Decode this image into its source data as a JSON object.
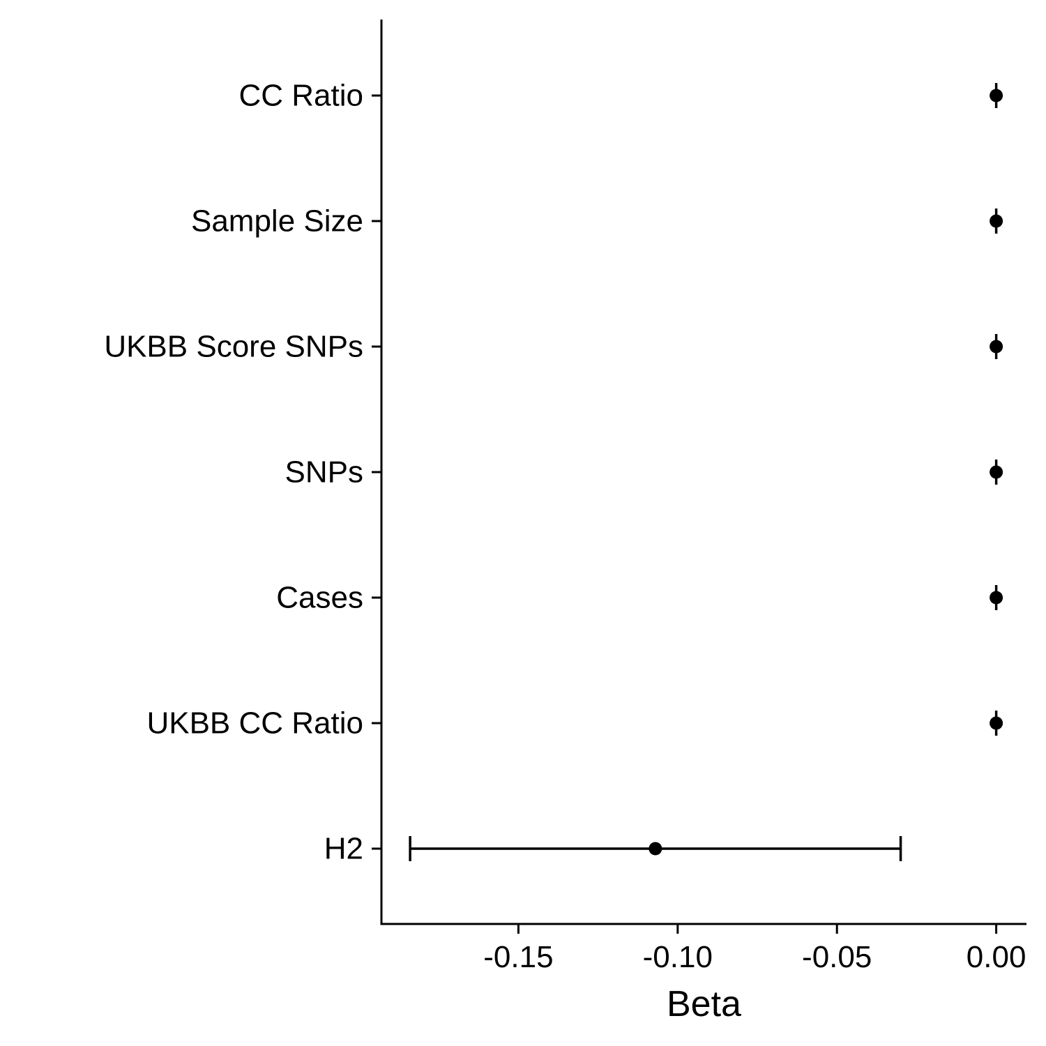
{
  "chart_data": {
    "type": "scatter",
    "subtype": "forest-plot",
    "title": "",
    "xlabel": "Beta",
    "ylabel": "",
    "categories": [
      "CC Ratio",
      "Sample Size",
      "UKBB Score SNPs",
      "SNPs",
      "Cases",
      "UKBB CC Ratio",
      "H2"
    ],
    "values": [
      0.0,
      0.0,
      0.0,
      0.0,
      0.0,
      0.0,
      -0.107
    ],
    "lower": [
      0.0,
      0.0,
      0.0,
      0.0,
      0.0,
      0.0,
      -0.184
    ],
    "upper": [
      0.0,
      0.0,
      0.0,
      0.0,
      0.0,
      0.0,
      -0.03
    ],
    "xlim": [
      -0.193,
      0.0095
    ],
    "xticks": [
      -0.15,
      -0.1,
      -0.05,
      0.0
    ],
    "xtick_labels": [
      "-0.15",
      "-0.10",
      "-0.05",
      "0.00"
    ],
    "grid": false,
    "legend": "none",
    "color": "#000000"
  }
}
